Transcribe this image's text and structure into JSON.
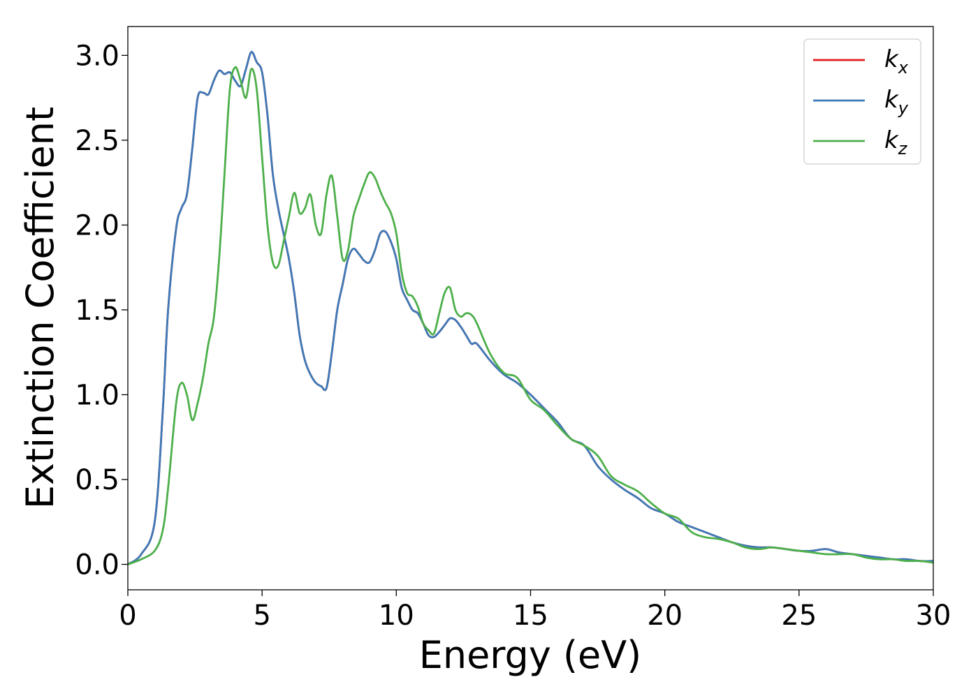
{
  "chart_data": {
    "type": "line",
    "xlabel": "Energy (eV)",
    "ylabel": "Extinction Coefficient",
    "xlim": [
      0,
      30
    ],
    "ylim": [
      -0.15,
      3.17
    ],
    "x_ticks": [
      "0",
      "5",
      "10",
      "15",
      "20",
      "25",
      "30"
    ],
    "y_ticks": [
      "0.0",
      "0.5",
      "1.0",
      "1.5",
      "2.0",
      "2.5",
      "3.0"
    ],
    "grid": false,
    "legend_position": "top-right",
    "x": [
      0,
      0.5,
      1.0,
      1.3,
      1.5,
      1.8,
      2.0,
      2.2,
      2.4,
      2.6,
      2.8,
      3.0,
      3.2,
      3.4,
      3.6,
      3.8,
      4.0,
      4.2,
      4.4,
      4.6,
      4.8,
      5.0,
      5.2,
      5.4,
      5.6,
      5.8,
      6.0,
      6.2,
      6.4,
      6.6,
      6.8,
      7.0,
      7.2,
      7.4,
      7.6,
      7.8,
      8.0,
      8.2,
      8.4,
      8.6,
      8.8,
      9.0,
      9.2,
      9.4,
      9.6,
      9.8,
      10.0,
      10.2,
      10.4,
      10.6,
      10.8,
      11.0,
      11.2,
      11.4,
      11.6,
      11.8,
      12.0,
      12.2,
      12.4,
      12.6,
      12.8,
      13.0,
      13.5,
      14.0,
      14.5,
      15.0,
      15.5,
      16.0,
      16.5,
      17.0,
      17.5,
      18.0,
      18.5,
      19.0,
      19.5,
      20.0,
      20.5,
      21.0,
      21.5,
      22.0,
      22.5,
      23.0,
      23.5,
      24.0,
      24.5,
      25.0,
      25.5,
      26.0,
      26.5,
      27.0,
      27.5,
      28.0,
      28.5,
      29.0,
      29.5,
      30.0
    ],
    "series": [
      {
        "name": "k_x",
        "label_main": "k",
        "label_sub": "x",
        "color": "#e41a1c",
        "values": [
          0.0,
          0.06,
          0.25,
          0.9,
          1.5,
          1.98,
          2.1,
          2.18,
          2.45,
          2.75,
          2.78,
          2.77,
          2.85,
          2.91,
          2.89,
          2.9,
          2.85,
          2.82,
          2.92,
          3.02,
          2.96,
          2.9,
          2.65,
          2.3,
          2.1,
          1.95,
          1.8,
          1.6,
          1.35,
          1.2,
          1.12,
          1.07,
          1.05,
          1.04,
          1.25,
          1.5,
          1.65,
          1.8,
          1.86,
          1.83,
          1.79,
          1.78,
          1.85,
          1.95,
          1.96,
          1.9,
          1.8,
          1.63,
          1.56,
          1.5,
          1.48,
          1.42,
          1.35,
          1.34,
          1.37,
          1.41,
          1.45,
          1.44,
          1.4,
          1.35,
          1.3,
          1.3,
          1.2,
          1.12,
          1.07,
          1.0,
          0.92,
          0.84,
          0.74,
          0.7,
          0.58,
          0.5,
          0.44,
          0.39,
          0.33,
          0.3,
          0.25,
          0.22,
          0.19,
          0.16,
          0.13,
          0.11,
          0.1,
          0.1,
          0.09,
          0.08,
          0.08,
          0.09,
          0.07,
          0.06,
          0.05,
          0.04,
          0.03,
          0.03,
          0.02,
          0.02
        ]
      },
      {
        "name": "k_y",
        "label_main": "k",
        "label_sub": "y",
        "color": "#3d7ab8",
        "values": [
          0.0,
          0.06,
          0.25,
          0.9,
          1.5,
          1.98,
          2.1,
          2.18,
          2.45,
          2.75,
          2.78,
          2.77,
          2.85,
          2.91,
          2.89,
          2.9,
          2.85,
          2.82,
          2.92,
          3.02,
          2.96,
          2.9,
          2.65,
          2.3,
          2.1,
          1.95,
          1.8,
          1.6,
          1.35,
          1.2,
          1.12,
          1.07,
          1.05,
          1.04,
          1.25,
          1.5,
          1.65,
          1.8,
          1.86,
          1.83,
          1.79,
          1.78,
          1.85,
          1.95,
          1.96,
          1.9,
          1.8,
          1.63,
          1.56,
          1.5,
          1.48,
          1.42,
          1.35,
          1.34,
          1.37,
          1.41,
          1.45,
          1.44,
          1.4,
          1.35,
          1.3,
          1.3,
          1.2,
          1.12,
          1.07,
          1.0,
          0.92,
          0.84,
          0.74,
          0.7,
          0.58,
          0.5,
          0.44,
          0.39,
          0.33,
          0.3,
          0.25,
          0.22,
          0.19,
          0.16,
          0.13,
          0.11,
          0.1,
          0.1,
          0.09,
          0.08,
          0.08,
          0.09,
          0.07,
          0.06,
          0.05,
          0.04,
          0.03,
          0.03,
          0.02,
          0.02
        ]
      },
      {
        "name": "k_z",
        "label_main": "k",
        "label_sub": "z",
        "color": "#4daf4a",
        "values": [
          0.0,
          0.03,
          0.08,
          0.2,
          0.45,
          0.95,
          1.07,
          1.0,
          0.85,
          0.95,
          1.1,
          1.3,
          1.45,
          1.8,
          2.3,
          2.8,
          2.93,
          2.85,
          2.75,
          2.92,
          2.8,
          2.4,
          2.0,
          1.78,
          1.76,
          1.9,
          2.05,
          2.19,
          2.07,
          2.1,
          2.18,
          2.0,
          1.95,
          2.18,
          2.29,
          2.05,
          1.8,
          1.85,
          2.05,
          2.15,
          2.24,
          2.31,
          2.28,
          2.2,
          2.13,
          2.07,
          1.95,
          1.72,
          1.6,
          1.58,
          1.52,
          1.42,
          1.38,
          1.36,
          1.48,
          1.6,
          1.63,
          1.5,
          1.46,
          1.48,
          1.47,
          1.42,
          1.24,
          1.13,
          1.1,
          0.97,
          0.91,
          0.82,
          0.74,
          0.7,
          0.64,
          0.52,
          0.47,
          0.43,
          0.36,
          0.3,
          0.27,
          0.19,
          0.16,
          0.15,
          0.13,
          0.1,
          0.09,
          0.1,
          0.09,
          0.08,
          0.07,
          0.06,
          0.06,
          0.06,
          0.04,
          0.03,
          0.03,
          0.02,
          0.02,
          0.01
        ]
      }
    ]
  }
}
